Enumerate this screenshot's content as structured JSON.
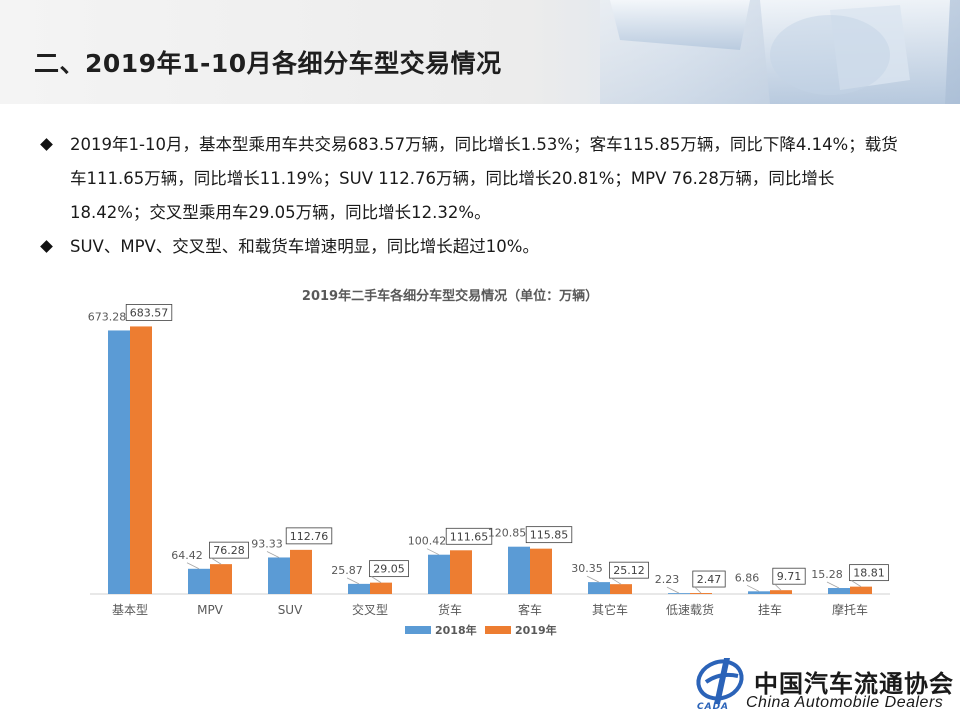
{
  "header": {
    "title": "二、2019年1-10月各细分车型交易情况"
  },
  "bullets": [
    "2019年1-10月，基本型乘用车共交易683.57万辆，同比增长1.53%；客车115.85万辆，同比下降4.14%；载货车111.65万辆，同比增长11.19%；SUV 112.76万辆，同比增长20.81%；MPV 76.28万辆，同比增长18.42%；交叉型乘用车29.05万辆，同比增长12.32%。",
    "SUV、MPV、交叉型、和载货车增速明显，同比增长超过10%。"
  ],
  "chart_data": {
    "type": "bar",
    "title": "2019年二手车各细分车型交易情况（单位：万辆）",
    "categories": [
      "基本型",
      "MPV",
      "SUV",
      "交叉型",
      "货车",
      "客车",
      "其它车",
      "低速载货",
      "挂车",
      "摩托车"
    ],
    "series": [
      {
        "name": "2018年",
        "color": "#5b9bd5",
        "values": [
          673.28,
          64.42,
          93.33,
          25.87,
          100.42,
          120.85,
          30.35,
          2.23,
          6.86,
          15.28
        ]
      },
      {
        "name": "2019年",
        "color": "#ed7d31",
        "values": [
          683.57,
          76.28,
          112.76,
          29.05,
          111.65,
          115.85,
          25.12,
          2.47,
          9.71,
          18.81
        ]
      }
    ],
    "ylim": [
      0,
      700
    ],
    "grid": false,
    "legend": "bottom-center",
    "xlabel": "",
    "ylabel": ""
  },
  "logo": {
    "cn": "中国汽车流通协会",
    "en": "China Automobile Dealers",
    "mark_text": "CADA"
  }
}
